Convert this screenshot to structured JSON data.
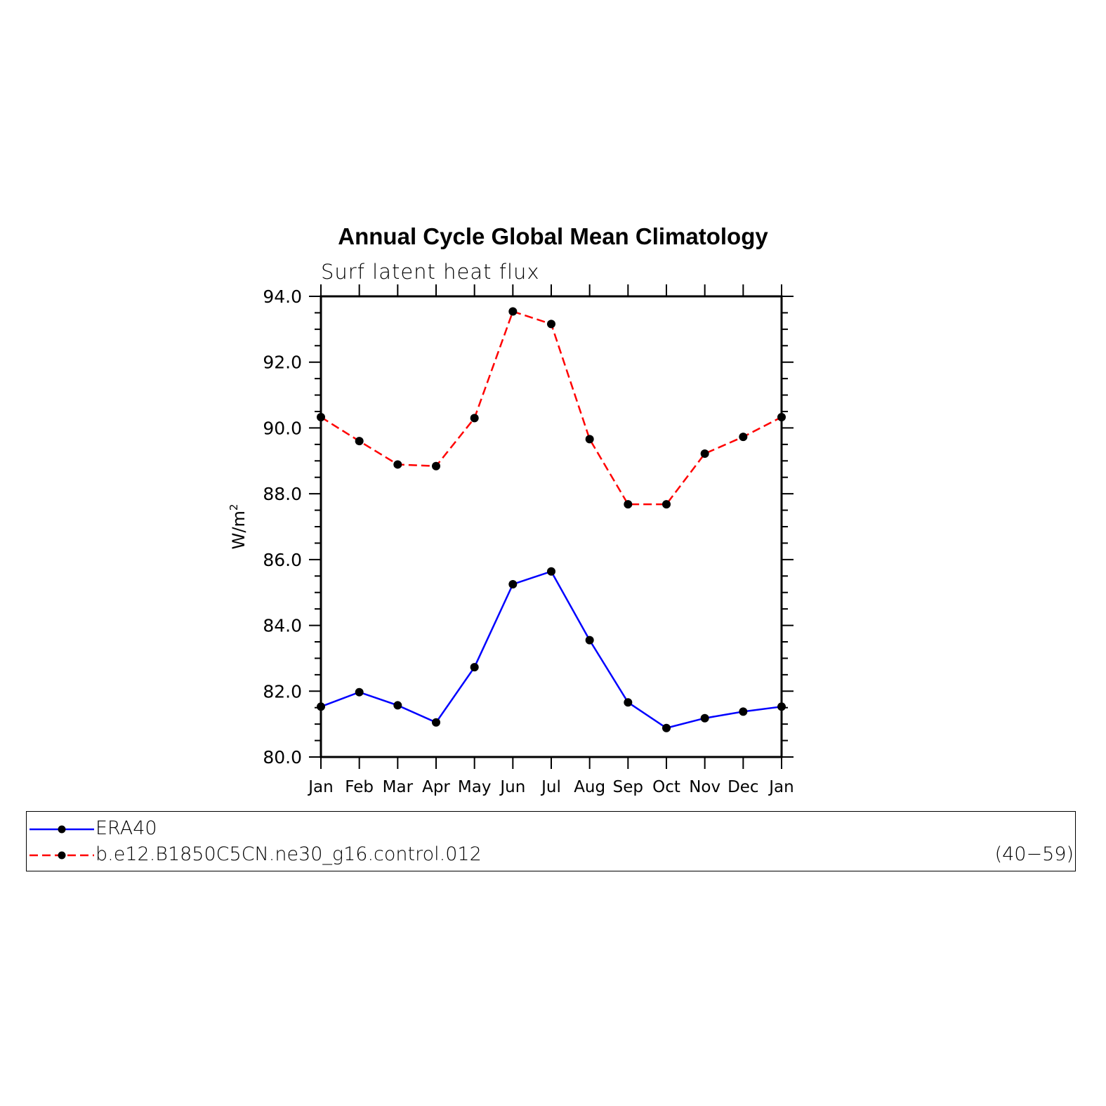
{
  "chart_data": {
    "type": "line",
    "title": "Annual Cycle Global Mean Climatology",
    "subtitle": "Surf latent heat flux",
    "ylabel": "W/m",
    "ylabel_sup": "2",
    "xlabel": "",
    "ylim": [
      80.0,
      94.0
    ],
    "yticks": [
      "80.0",
      "82.0",
      "84.0",
      "86.0",
      "88.0",
      "90.0",
      "92.0",
      "94.0"
    ],
    "categories": [
      "Jan",
      "Feb",
      "Mar",
      "Apr",
      "May",
      "Jun",
      "Jul",
      "Aug",
      "Sep",
      "Oct",
      "Nov",
      "Dec",
      "Jan"
    ],
    "series": [
      {
        "name": "ERA40",
        "color": "#0000ff",
        "line_style": "solid",
        "marker": "filled-circle",
        "values": [
          81.53,
          81.97,
          81.57,
          81.05,
          82.73,
          85.25,
          85.64,
          83.55,
          81.66,
          80.88,
          81.18,
          81.38,
          81.53
        ]
      },
      {
        "name": "b.e12.B1850C5CN.ne30_g16.control.012",
        "period": "(40−59)",
        "color": "#ff0000",
        "line_style": "dashed",
        "marker": "filled-circle",
        "values": [
          90.33,
          89.6,
          88.89,
          88.84,
          90.3,
          93.54,
          93.16,
          89.66,
          87.68,
          87.68,
          89.22,
          89.73,
          90.33
        ]
      }
    ],
    "grid": false,
    "legend_position": "bottom"
  }
}
